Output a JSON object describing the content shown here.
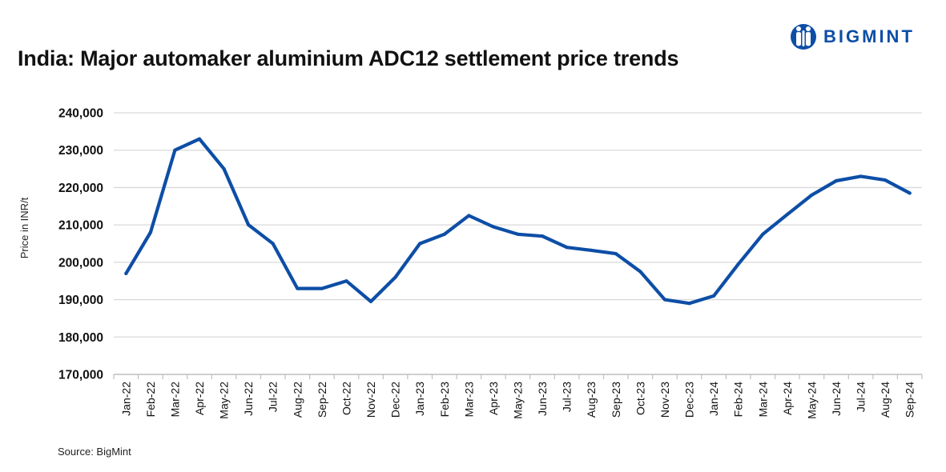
{
  "brand": {
    "name": "BIGMINT",
    "color": "#0d4ea6"
  },
  "source": "Source: BigMint",
  "chart_data": {
    "type": "line",
    "title": "India: Major automaker aluminium ADC12 settlement price trends",
    "xlabel": "",
    "ylabel": "Price in INR/t",
    "ylim": [
      170000,
      240000
    ],
    "yticks": [
      170000,
      180000,
      190000,
      200000,
      210000,
      220000,
      230000,
      240000
    ],
    "ytick_labels": [
      "170,000",
      "180,000",
      "190,000",
      "200,000",
      "210,000",
      "220,000",
      "230,000",
      "240,000"
    ],
    "grid": true,
    "legend": "none",
    "categories": [
      "Jan-22",
      "Feb-22",
      "Mar-22",
      "Apr-22",
      "May-22",
      "Jun-22",
      "Jul-22",
      "Aug-22",
      "Sep-22",
      "Oct-22",
      "Nov-22",
      "Dec-22",
      "Jan-23",
      "Feb-23",
      "Mar-23",
      "Apr-23",
      "May-23",
      "Jun-23",
      "Jul-23",
      "Aug-23",
      "Sep-23",
      "Oct-23",
      "Nov-23",
      "Dec-23",
      "Jan-24",
      "Feb-24",
      "Mar-24",
      "Apr-24",
      "May-24",
      "Jun-24",
      "Jul-24",
      "Aug-24",
      "Sep-24"
    ],
    "series": [
      {
        "name": "ADC12 settlement price",
        "color": "#0d4ea6",
        "values": [
          197000,
          208000,
          230000,
          233000,
          225000,
          210000,
          205000,
          193000,
          193000,
          195000,
          189500,
          196000,
          205000,
          207500,
          212500,
          209500,
          207500,
          207000,
          204000,
          203200,
          202300,
          197500,
          190000,
          189000,
          191000,
          199500,
          207500,
          212800,
          218000,
          221800,
          223000,
          222000,
          218500
        ]
      }
    ]
  }
}
